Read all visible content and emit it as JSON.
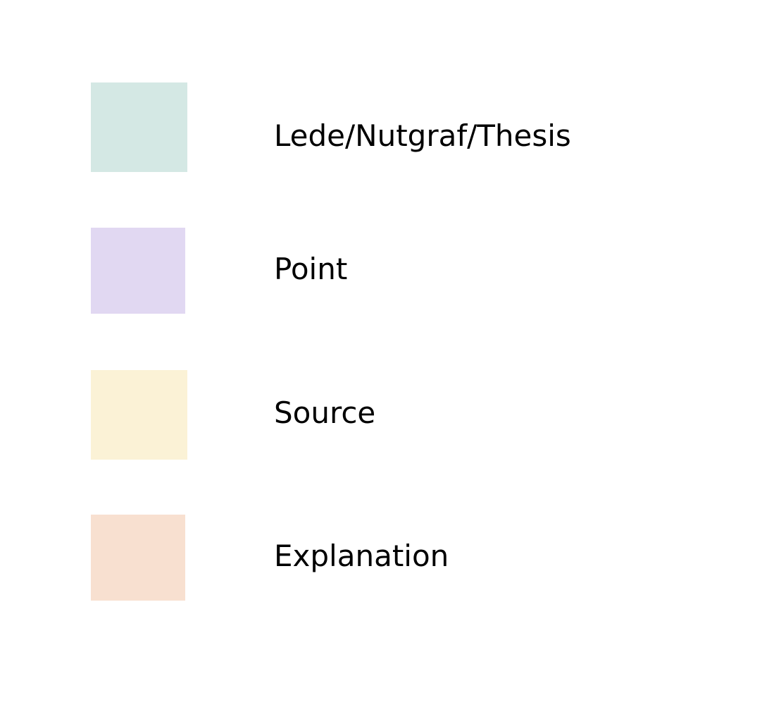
{
  "legend": {
    "items": [
      {
        "label": "Lede/Nutgraf/Thesis",
        "color": "#d4e8e4"
      },
      {
        "label": "Point",
        "color": "#e1d8f2"
      },
      {
        "label": "Source",
        "color": "#fbf2d6"
      },
      {
        "label": "Explanation",
        "color": "#f8e0d0"
      }
    ]
  }
}
